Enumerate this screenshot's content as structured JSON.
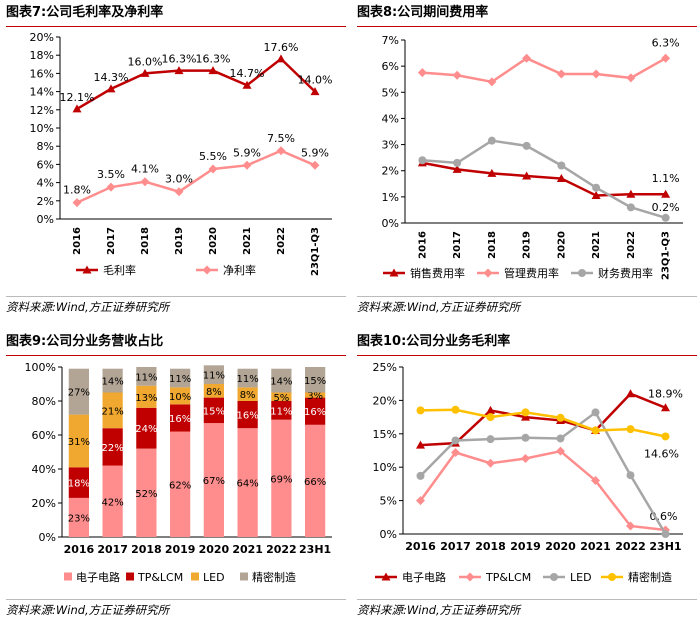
{
  "chart_data": [
    {
      "id": "chart7",
      "type": "line",
      "title": "图表7:公司毛利率及净利率",
      "source": "资料来源:Wind,方正证券研究所",
      "categories": [
        "2016",
        "2017",
        "2018",
        "2019",
        "2020",
        "2021",
        "2022",
        "23Q1-Q3"
      ],
      "ylim": [
        0,
        20
      ],
      "yticks": [
        0,
        2,
        4,
        6,
        8,
        10,
        12,
        14,
        16,
        18,
        20
      ],
      "ytick_labels": [
        "0%",
        "2%",
        "4%",
        "6%",
        "8%",
        "10%",
        "12%",
        "14%",
        "16%",
        "18%",
        "20%"
      ],
      "series": [
        {
          "name": "毛利率",
          "color": "#c00000",
          "marker": "triangle",
          "values": [
            12.1,
            14.3,
            16.0,
            16.3,
            16.3,
            14.7,
            17.6,
            14.0
          ],
          "labels": [
            "12.1%",
            "14.3%",
            "16.0%",
            "16.3%",
            "16.3%",
            "14.7%",
            "17.6%",
            "14.0%"
          ]
        },
        {
          "name": "净利率",
          "color": "#ff8d8d",
          "marker": "diamond",
          "values": [
            1.8,
            3.5,
            4.1,
            3.0,
            5.5,
            5.9,
            7.5,
            5.9
          ],
          "labels": [
            "1.8%",
            "3.5%",
            "4.1%",
            "3.0%",
            "5.5%",
            "5.9%",
            "7.5%",
            "5.9%"
          ]
        }
      ]
    },
    {
      "id": "chart8",
      "type": "line",
      "title": "图表8:公司期间费用率",
      "source": "资料来源:Wind,方正证券研究所",
      "categories": [
        "2016",
        "2017",
        "2018",
        "2019",
        "2020",
        "2021",
        "2022",
        "23Q1-Q3"
      ],
      "ylim": [
        0,
        7
      ],
      "yticks": [
        0,
        1,
        2,
        3,
        4,
        5,
        6,
        7
      ],
      "ytick_labels": [
        "0%",
        "1%",
        "2%",
        "3%",
        "4%",
        "5%",
        "6%",
        "7%"
      ],
      "series": [
        {
          "name": "销售费用率",
          "color": "#c00000",
          "marker": "triangle",
          "values": [
            2.3,
            2.05,
            1.9,
            1.8,
            1.7,
            1.05,
            1.1,
            1.1
          ],
          "labels": [
            "",
            "",
            "",
            "",
            "",
            "",
            "",
            "1.1%"
          ]
        },
        {
          "name": "管理费用率",
          "color": "#ff8d8d",
          "marker": "diamond",
          "values": [
            5.75,
            5.65,
            5.4,
            6.3,
            5.7,
            5.7,
            5.55,
            6.3
          ],
          "labels": [
            "",
            "",
            "",
            "",
            "",
            "",
            "",
            "6.3%"
          ]
        },
        {
          "name": "财务费用率",
          "color": "#a6a6a6",
          "marker": "circle",
          "values": [
            2.4,
            2.3,
            3.15,
            2.95,
            2.2,
            1.35,
            0.6,
            0.2
          ],
          "labels": [
            "",
            "",
            "",
            "",
            "",
            "",
            "",
            "0.2%"
          ]
        }
      ]
    },
    {
      "id": "chart9",
      "type": "bar",
      "stacked": true,
      "title": "图表9:公司分业务营收占比",
      "source": "资料来源:Wind,方正证券研究所",
      "categories": [
        "2016",
        "2017",
        "2018",
        "2019",
        "2020",
        "2021",
        "2022",
        "23H1"
      ],
      "ylim": [
        0,
        100
      ],
      "yticks": [
        0,
        20,
        40,
        60,
        80,
        100
      ],
      "ytick_labels": [
        "0%",
        "20%",
        "40%",
        "60%",
        "80%",
        "100%"
      ],
      "series": [
        {
          "name": "电子电路",
          "color": "#ff8d8d",
          "values": [
            23,
            42,
            52,
            62,
            67,
            64,
            69,
            66
          ],
          "labels": [
            "23%",
            "42%",
            "52%",
            "62%",
            "67%",
            "64%",
            "69%",
            "66%"
          ]
        },
        {
          "name": "TP&LCM",
          "color": "#c00000",
          "values": [
            18,
            22,
            24,
            16,
            15,
            16,
            11,
            16
          ],
          "labels": [
            "18%",
            "22%",
            "24%",
            "16%",
            "15%",
            "16%",
            "11%",
            "16%"
          ]
        },
        {
          "name": "LED",
          "color": "#f0a830",
          "values": [
            31,
            21,
            13,
            10,
            8,
            8,
            5,
            3
          ],
          "labels": [
            "31%",
            "21%",
            "13%",
            "10%",
            "8%",
            "8%",
            "5%",
            "3%"
          ]
        },
        {
          "name": "精密制造",
          "color": "#b2a596",
          "values": [
            27,
            14,
            11,
            11,
            11,
            11,
            14,
            15
          ],
          "labels": [
            "27%",
            "14%",
            "11%",
            "11%",
            "11%",
            "11%",
            "14%",
            "15%"
          ]
        }
      ]
    },
    {
      "id": "chart10",
      "type": "line",
      "title": "图表10:公司分业务毛利率",
      "source": "资料来源:Wind,方正证券研究所",
      "categories": [
        "2016",
        "2017",
        "2018",
        "2019",
        "2020",
        "2021",
        "2022",
        "23H1"
      ],
      "ylim": [
        0,
        25
      ],
      "yticks": [
        0,
        5,
        10,
        15,
        20,
        25
      ],
      "ytick_labels": [
        "0%",
        "5%",
        "10%",
        "15%",
        "20%",
        "25%"
      ],
      "series": [
        {
          "name": "电子电路",
          "color": "#c00000",
          "marker": "triangle",
          "values": [
            13.3,
            13.6,
            18.5,
            17.5,
            17.0,
            15.5,
            21.0,
            18.9
          ],
          "labels": [
            "",
            "",
            "",
            "",
            "",
            "",
            "",
            "18.9%"
          ]
        },
        {
          "name": "TP&LCM",
          "color": "#ff8d8d",
          "marker": "diamond",
          "values": [
            5.0,
            12.2,
            10.6,
            11.3,
            12.4,
            8.0,
            1.2,
            0.6
          ],
          "labels": [
            "",
            "",
            "",
            "",
            "",
            "",
            "",
            "0.6%"
          ]
        },
        {
          "name": "LED",
          "color": "#a6a6a6",
          "marker": "circle",
          "values": [
            8.7,
            14.0,
            14.2,
            14.4,
            14.3,
            18.2,
            8.8,
            0.0
          ],
          "labels": [
            "",
            "",
            "",
            "",
            "",
            "",
            "",
            ""
          ]
        },
        {
          "name": "精密制造",
          "color": "#ffc000",
          "marker": "circle",
          "values": [
            18.5,
            18.6,
            17.5,
            18.2,
            17.4,
            15.5,
            15.7,
            14.6
          ],
          "labels": [
            "",
            "",
            "",
            "",
            "",
            "",
            "",
            "14.6%"
          ]
        }
      ]
    }
  ]
}
